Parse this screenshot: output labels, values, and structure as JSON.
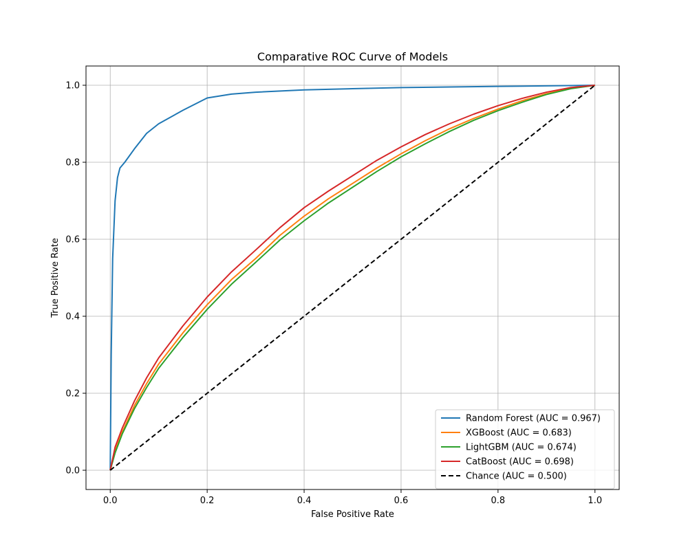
{
  "chart_data": {
    "type": "line",
    "title": "Comparative ROC Curve of Models",
    "xlabel": "False Positive Rate",
    "ylabel": "True Positive Rate",
    "xlim": [
      -0.05,
      1.05
    ],
    "ylim": [
      -0.05,
      1.05
    ],
    "xticks": [
      0.0,
      0.2,
      0.4,
      0.6,
      0.8,
      1.0
    ],
    "yticks": [
      0.0,
      0.2,
      0.4,
      0.6,
      0.8,
      1.0
    ],
    "xtick_labels": [
      "0.0",
      "0.2",
      "0.4",
      "0.6",
      "0.8",
      "1.0"
    ],
    "ytick_labels": [
      "0.0",
      "0.2",
      "0.4",
      "0.6",
      "0.8",
      "1.0"
    ],
    "grid": true,
    "legend_position": "lower-right",
    "series": [
      {
        "name": "Random Forest (AUC = 0.967)",
        "color": "#1f77b4",
        "dash": "solid",
        "x": [
          0,
          0.002,
          0.005,
          0.01,
          0.015,
          0.02,
          0.03,
          0.05,
          0.075,
          0.1,
          0.15,
          0.2,
          0.25,
          0.3,
          0.4,
          0.5,
          0.6,
          0.8,
          1.0
        ],
        "y": [
          0,
          0.3,
          0.55,
          0.7,
          0.76,
          0.785,
          0.8,
          0.835,
          0.875,
          0.9,
          0.935,
          0.967,
          0.977,
          0.982,
          0.988,
          0.991,
          0.994,
          0.997,
          1.0
        ]
      },
      {
        "name": "XGBoost (AUC = 0.683)",
        "color": "#ff7f0e",
        "dash": "solid",
        "x": [
          0,
          0.01,
          0.025,
          0.05,
          0.075,
          0.1,
          0.15,
          0.2,
          0.25,
          0.3,
          0.35,
          0.4,
          0.45,
          0.5,
          0.55,
          0.6,
          0.65,
          0.7,
          0.75,
          0.8,
          0.85,
          0.9,
          0.95,
          1.0
        ],
        "y": [
          0,
          0.05,
          0.1,
          0.168,
          0.225,
          0.276,
          0.357,
          0.43,
          0.495,
          0.55,
          0.61,
          0.66,
          0.705,
          0.745,
          0.785,
          0.822,
          0.856,
          0.887,
          0.914,
          0.938,
          0.96,
          0.978,
          0.992,
          1.0
        ]
      },
      {
        "name": "LightGBM (AUC = 0.674)",
        "color": "#2ca02c",
        "dash": "solid",
        "x": [
          0,
          0.01,
          0.025,
          0.05,
          0.075,
          0.1,
          0.15,
          0.2,
          0.25,
          0.3,
          0.35,
          0.4,
          0.45,
          0.5,
          0.55,
          0.6,
          0.65,
          0.7,
          0.75,
          0.8,
          0.85,
          0.9,
          0.95,
          1.0
        ],
        "y": [
          0,
          0.045,
          0.095,
          0.16,
          0.215,
          0.265,
          0.345,
          0.418,
          0.483,
          0.54,
          0.598,
          0.648,
          0.694,
          0.735,
          0.776,
          0.814,
          0.848,
          0.88,
          0.909,
          0.934,
          0.956,
          0.976,
          0.991,
          1.0
        ]
      },
      {
        "name": "CatBoost (AUC = 0.698)",
        "color": "#d62728",
        "dash": "solid",
        "x": [
          0,
          0.01,
          0.025,
          0.05,
          0.075,
          0.1,
          0.15,
          0.2,
          0.25,
          0.3,
          0.35,
          0.4,
          0.45,
          0.5,
          0.55,
          0.6,
          0.65,
          0.7,
          0.75,
          0.8,
          0.85,
          0.9,
          0.95,
          1.0
        ],
        "y": [
          0,
          0.06,
          0.11,
          0.18,
          0.24,
          0.292,
          0.375,
          0.45,
          0.515,
          0.572,
          0.63,
          0.682,
          0.725,
          0.765,
          0.805,
          0.84,
          0.872,
          0.9,
          0.925,
          0.947,
          0.966,
          0.982,
          0.994,
          1.0
        ]
      },
      {
        "name": "Chance (AUC = 0.500)",
        "color": "#000000",
        "dash": "dashed",
        "x": [
          0,
          1
        ],
        "y": [
          0,
          1
        ]
      }
    ]
  }
}
